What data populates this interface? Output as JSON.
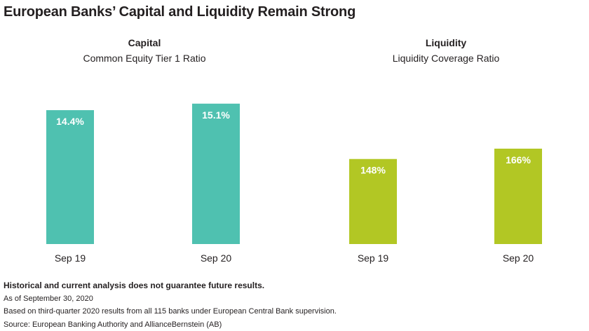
{
  "title": "European Banks’ Capital and Liquidity Remain Strong",
  "chart_data": [
    {
      "type": "bar",
      "title": "Capital",
      "subtitle": "Common Equity Tier 1 Ratio",
      "categories": [
        "Sep 19",
        "Sep 20"
      ],
      "values": [
        14.4,
        15.1
      ],
      "labels": [
        "14.4%",
        "15.1%"
      ],
      "color": "#4fc1b0",
      "ylim": [
        0,
        17.8
      ],
      "grid": false
    },
    {
      "type": "bar",
      "title": "Liquidity",
      "subtitle": "Liquidity Coverage Ratio",
      "categories": [
        "Sep 19",
        "Sep 20"
      ],
      "values": [
        148,
        166
      ],
      "labels": [
        "148%",
        "166%"
      ],
      "color": "#b2c724",
      "ylim": [
        0,
        288
      ],
      "grid": false
    }
  ],
  "footer": {
    "disclaimer": "Historical and current analysis does not guarantee future results.",
    "as_of": "As of September 30, 2020",
    "basis": "Based on third-quarter 2020 results from all 115 banks under European Central Bank supervision.",
    "source": "Source: European Banking Authority and AllianceBernstein (AB)"
  }
}
